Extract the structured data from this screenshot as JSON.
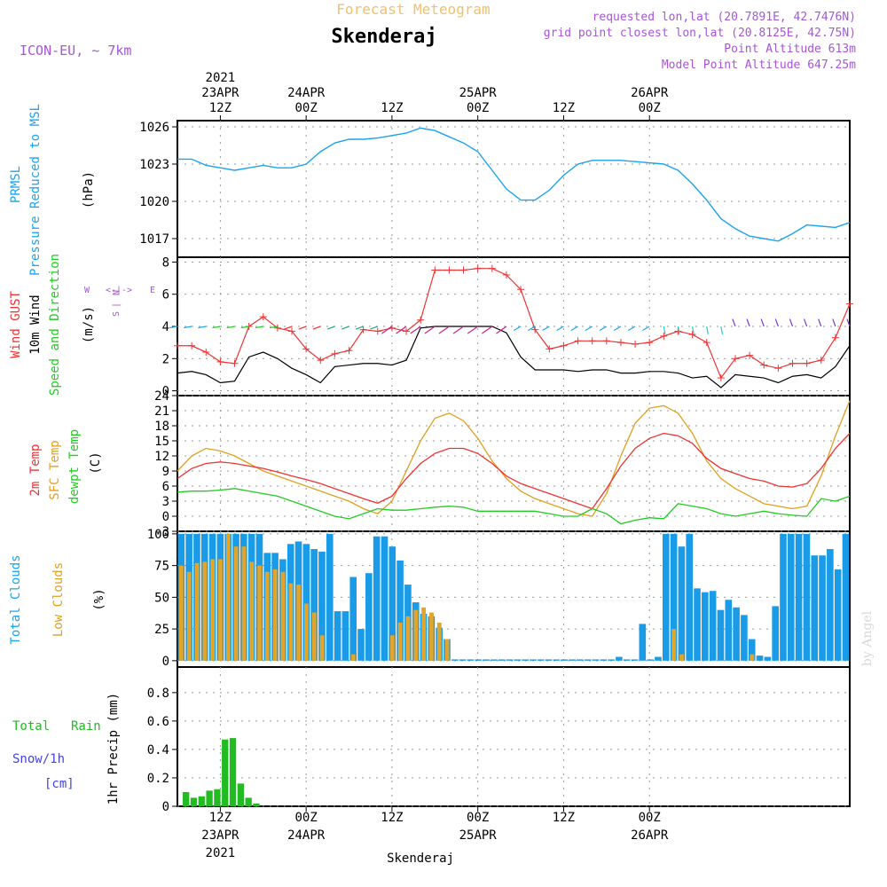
{
  "header": {
    "title_top": "Forecast Meteogram",
    "location": "Skenderaj",
    "model": "ICON-EU, ~ 7km",
    "requested": "requested lon,lat (20.7891E, 42.7476N)",
    "gridpoint": "grid point closest lon,lat (20.8125E, 42.75N)",
    "point_alt": "Point Altitude 613m",
    "model_alt": "Model Point Altitude 647.25m",
    "credit": "by Angel",
    "footer": "Skenderaj"
  },
  "time_axis": {
    "start": "2021-04-23T06Z",
    "ticks": [
      {
        "lab1": "12Z",
        "lab2": "23APR",
        "lab3": "2021",
        "hour": "2021-04-23T12Z"
      },
      {
        "lab1": "00Z",
        "lab2": "24APR",
        "lab3": "",
        "hour": "2021-04-24T00Z"
      },
      {
        "lab1": "12Z",
        "lab2": "",
        "lab3": "",
        "hour": "2021-04-24T12Z"
      },
      {
        "lab1": "00Z",
        "lab2": "25APR",
        "lab3": "",
        "hour": "2021-04-25T00Z"
      },
      {
        "lab1": "12Z",
        "lab2": "",
        "lab3": "",
        "hour": "2021-04-25T12Z"
      },
      {
        "lab1": "00Z",
        "lab2": "26APR",
        "lab3": "",
        "hour": "2021-04-26T00Z"
      }
    ]
  },
  "panel_labels": {
    "p1": {
      "a": "PRMSL",
      "b": "Pressure Reduced to MSL",
      "unit": "(hPa)"
    },
    "p2": {
      "a": "Wind GUST",
      "b": "10m Wind",
      "c": "Speed and Direction",
      "unit": "(m/s)",
      "compass": "N, W <--|--> E, S"
    },
    "p3": {
      "a": "2m Temp",
      "b": "SFC Temp",
      "c": "dewpt Temp",
      "unit": "(C)"
    },
    "p4": {
      "a": "Total Clouds",
      "b": "Low Clouds",
      "unit": "(%)"
    },
    "p5": {
      "a": "Total",
      "a2": "Rain",
      "b": "Snow/1h",
      "c": "[cm]",
      "unit": "1hr Precip (mm)"
    }
  },
  "colors": {
    "pressure": "#1aa3ee",
    "gust": "#ee3333",
    "wind": "#000000",
    "temp2m": "#ee3333",
    "sfc": "#e0a020",
    "dewpt": "#22cc22",
    "total_clouds": "#1a9be8",
    "low_clouds": "#e0a52a",
    "rain": "#22bb22",
    "purple": "#a855d8",
    "gold": "#f0c070"
  },
  "chart_data": [
    {
      "type": "line",
      "name": "PRMSL",
      "ylabel": "(hPa)",
      "ylim": [
        1015.5,
        1026.5
      ],
      "yticks": [
        1017,
        1020,
        1023,
        1026
      ],
      "x_hours_from_start": [
        0,
        2,
        4,
        6,
        8,
        10,
        12,
        14,
        16,
        18,
        20,
        22,
        24,
        26,
        28,
        30,
        32,
        34,
        36,
        38,
        40,
        42,
        44,
        46,
        48,
        50,
        52,
        54,
        56,
        58,
        60,
        62,
        64,
        66,
        68,
        70,
        72,
        74,
        76,
        78,
        80,
        82,
        84,
        86,
        88,
        90,
        92,
        94
      ],
      "values": [
        1023.4,
        1023.4,
        1022.9,
        1022.7,
        1022.5,
        1022.7,
        1022.9,
        1022.7,
        1022.7,
        1023.0,
        1024.0,
        1024.7,
        1025.0,
        1025.0,
        1025.1,
        1025.3,
        1025.5,
        1025.9,
        1025.7,
        1025.2,
        1024.7,
        1024.0,
        1022.5,
        1021.0,
        1020.1,
        1020.1,
        1020.9,
        1022.1,
        1023.0,
        1023.3,
        1023.3,
        1023.3,
        1023.2,
        1023.1,
        1023.0,
        1022.5,
        1021.4,
        1020.1,
        1018.6,
        1017.8,
        1017.2,
        1017.0,
        1016.8,
        1017.4,
        1018.1,
        1018.0,
        1017.9,
        1018.3
      ]
    },
    {
      "type": "line",
      "name": "Wind GUST",
      "ylabel": "(m/s)",
      "ylim": [
        -0.3,
        8.3
      ],
      "yticks": [
        0,
        2,
        4,
        6,
        8
      ],
      "x_hours_from_start": [
        0,
        2,
        4,
        6,
        8,
        10,
        12,
        14,
        16,
        18,
        20,
        22,
        24,
        26,
        28,
        30,
        32,
        34,
        36,
        38,
        40,
        42,
        44,
        46,
        48,
        50,
        52,
        54,
        56,
        58,
        60,
        62,
        64,
        66,
        68,
        70,
        72,
        74,
        76,
        78,
        80,
        82,
        84,
        86,
        88,
        90,
        92,
        94
      ],
      "gust": [
        2.8,
        2.8,
        2.4,
        1.8,
        1.7,
        4.0,
        4.6,
        3.9,
        3.7,
        2.6,
        1.9,
        2.3,
        2.5,
        3.8,
        3.7,
        3.9,
        3.7,
        4.4,
        7.5,
        7.5,
        7.5,
        7.6,
        7.6,
        7.2,
        6.3,
        3.8,
        2.6,
        2.8,
        3.1,
        3.1,
        3.1,
        3.0,
        2.9,
        3.0,
        3.4,
        3.7,
        3.5,
        3.0,
        0.8,
        2.0,
        2.2,
        1.6,
        1.4,
        1.7,
        1.7,
        1.9,
        3.3,
        5.4
      ],
      "wind": [
        1.1,
        1.2,
        1.0,
        0.5,
        0.6,
        2.1,
        2.4,
        2.0,
        1.4,
        1.0,
        0.5,
        1.5,
        1.6,
        1.7,
        1.7,
        1.6,
        1.9,
        3.9,
        4.0,
        4.0,
        4.0,
        4.0,
        4.0,
        3.6,
        2.1,
        1.3,
        1.3,
        1.3,
        1.2,
        1.3,
        1.3,
        1.1,
        1.1,
        1.2,
        1.2,
        1.1,
        0.8,
        0.9,
        0.2,
        1.0,
        0.9,
        0.8,
        0.5,
        0.9,
        1.0,
        0.8,
        1.5,
        2.8
      ]
    },
    {
      "type": "line",
      "name": "Temperatures",
      "ylabel": "(C)",
      "ylim": [
        -3,
        24
      ],
      "yticks": [
        -3,
        0,
        3,
        6,
        9,
        12,
        15,
        18,
        21,
        24
      ],
      "x_hours_from_start": [
        0,
        2,
        4,
        6,
        8,
        10,
        12,
        14,
        16,
        18,
        20,
        22,
        24,
        26,
        28,
        30,
        32,
        34,
        36,
        38,
        40,
        42,
        44,
        46,
        48,
        50,
        52,
        54,
        56,
        58,
        60,
        62,
        64,
        66,
        68,
        70,
        72,
        74,
        76,
        78,
        80,
        82,
        84,
        86,
        88,
        90,
        92,
        94
      ],
      "t2m": [
        7.5,
        9.5,
        10.5,
        10.8,
        10.5,
        10.0,
        9.5,
        8.8,
        8.0,
        7.3,
        6.5,
        5.5,
        4.5,
        3.5,
        2.6,
        4.0,
        7.5,
        10.5,
        12.5,
        13.5,
        13.5,
        12.5,
        10.5,
        8.0,
        6.5,
        5.5,
        4.5,
        3.5,
        2.5,
        1.5,
        5.5,
        10.0,
        13.5,
        15.5,
        16.5,
        16.0,
        14.5,
        11.5,
        9.5,
        8.5,
        7.5,
        7.0,
        6.0,
        5.8,
        6.5,
        9.5,
        13.5,
        16.5
      ],
      "sfc": [
        9.0,
        12.0,
        13.5,
        13.0,
        12.0,
        10.5,
        9.0,
        8.0,
        7.0,
        6.0,
        5.0,
        4.0,
        3.0,
        1.5,
        0.5,
        3.0,
        9.0,
        15.0,
        19.5,
        20.5,
        19.0,
        15.5,
        11.0,
        7.5,
        5.0,
        3.5,
        2.5,
        1.5,
        0.5,
        0.0,
        4.5,
        12.0,
        18.5,
        21.5,
        22.0,
        20.5,
        16.5,
        11.0,
        7.5,
        5.5,
        4.0,
        2.5,
        2.0,
        1.5,
        2.0,
        8.0,
        16.0,
        23.0
      ],
      "dewpt": [
        4.8,
        5.0,
        5.0,
        5.2,
        5.5,
        5.0,
        4.5,
        4.0,
        3.0,
        2.0,
        1.0,
        0.0,
        -0.5,
        0.5,
        1.5,
        1.2,
        1.2,
        1.5,
        1.8,
        2.0,
        1.8,
        1.0,
        1.0,
        1.0,
        1.0,
        1.0,
        0.5,
        0.0,
        0.0,
        1.5,
        0.5,
        -1.5,
        -0.8,
        -0.3,
        -0.5,
        2.5,
        2.0,
        1.5,
        0.5,
        0.0,
        0.5,
        1.0,
        0.5,
        0.2,
        0.0,
        3.5,
        3.0,
        4.0
      ]
    },
    {
      "type": "bar",
      "name": "Clouds",
      "ylabel": "(%)",
      "ylim": [
        -5,
        102
      ],
      "yticks": [
        0,
        25,
        50,
        75,
        100
      ],
      "total": [
        100,
        100,
        100,
        100,
        100,
        100,
        100,
        100,
        100,
        100,
        100,
        85,
        85,
        80,
        92,
        94,
        92,
        88,
        86,
        100,
        39,
        39,
        66,
        25,
        69,
        98,
        98,
        90,
        79,
        60,
        46,
        37,
        35,
        26,
        17,
        1,
        1,
        1,
        1,
        1,
        1,
        1,
        1,
        1,
        1,
        1,
        1,
        1,
        1,
        1,
        1,
        1,
        1,
        1,
        1,
        1,
        3,
        1,
        1,
        29,
        1,
        3,
        100,
        100,
        90,
        100,
        57,
        54,
        55,
        40,
        48,
        42,
        36,
        17,
        4,
        3,
        43,
        100,
        100,
        100,
        100,
        83,
        83,
        88,
        72,
        100
      ],
      "low": [
        75,
        70,
        77,
        78,
        80,
        80,
        100,
        90,
        90,
        78,
        75,
        70,
        72,
        70,
        61,
        60,
        45,
        38,
        20,
        0,
        0,
        0,
        5,
        0,
        0,
        0,
        0,
        20,
        30,
        35,
        40,
        42,
        38,
        30,
        17,
        0,
        0,
        0,
        0,
        0,
        0,
        0,
        0,
        0,
        0,
        0,
        0,
        0,
        0,
        0,
        0,
        0,
        0,
        0,
        0,
        0,
        0,
        0,
        0,
        0,
        0,
        0,
        0,
        25,
        5,
        0,
        0,
        0,
        0,
        0,
        0,
        0,
        0,
        5,
        0,
        0,
        0,
        0,
        0,
        0,
        0,
        0,
        0,
        0,
        0,
        0
      ]
    },
    {
      "type": "bar",
      "name": "1hr Precip",
      "ylabel": "1hr Precip (mm)",
      "ylim": [
        0,
        0.98
      ],
      "yticks": [
        0,
        0.2,
        0.4,
        0.6,
        0.8
      ],
      "rain": [
        0.1,
        0.06,
        0.07,
        0.11,
        0.12,
        0.47,
        0.48,
        0.16,
        0.06,
        0.02
      ]
    }
  ]
}
